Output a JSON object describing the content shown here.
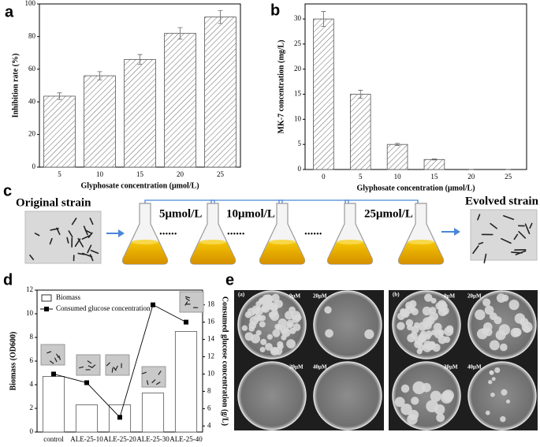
{
  "panel_labels": [
    "a",
    "b",
    "c",
    "d",
    "e"
  ],
  "chart_data": [
    {
      "type": "bar",
      "ylabel": "Inhibition rate (%)",
      "xlabel": "Glyphosate concentration (μmol/L)",
      "categories": [
        "5",
        "10",
        "15",
        "20",
        "25"
      ],
      "values": [
        43.5,
        56,
        66,
        82,
        92
      ],
      "errors": [
        2,
        2.5,
        3,
        3.5,
        4
      ],
      "ylim": [
        0,
        100
      ],
      "yticks": [
        0,
        20,
        40,
        60,
        80,
        100
      ],
      "hatch": true,
      "color": "#ffffff"
    },
    {
      "type": "bar",
      "ylabel": "MK-7 concentration (mg/L)",
      "xlabel": "Glyphosate concentration (μmol/L)",
      "categories": [
        "0",
        "5",
        "10",
        "15",
        "20",
        "25"
      ],
      "values": [
        30,
        15,
        5,
        2,
        0,
        0
      ],
      "errors": [
        1.5,
        0.8,
        0.2,
        0.1,
        0,
        0
      ],
      "ylim": [
        0,
        33
      ],
      "yticks": [
        0,
        5,
        10,
        15,
        20,
        25,
        30
      ],
      "hatch": true,
      "color": "#ffffff"
    },
    {
      "type": "bar-line",
      "ylabel": "Biomass (OD600)",
      "y2label": "Consumed glucose concentration (g/L)",
      "categories": [
        "control",
        "ALE-25-10",
        "ALE-25-20",
        "ALE-25-30",
        "ALE-25-40"
      ],
      "series": [
        {
          "name": "Biomass",
          "type": "bar",
          "color": "#ffffff",
          "values": [
            4.7,
            2.3,
            2.3,
            3.3,
            8.5
          ]
        },
        {
          "name": "Consumed glucose concentration",
          "type": "line",
          "axis": "y2",
          "color": "#000000",
          "values": [
            10,
            9,
            5,
            18,
            16
          ]
        }
      ],
      "ylim": [
        0,
        12
      ],
      "yticks": [
        0,
        2,
        4,
        6,
        8,
        10,
        12
      ],
      "y2lim": [
        3.3,
        19.7
      ],
      "y2ticks": [
        4,
        6,
        8,
        10,
        12,
        14,
        16,
        18
      ],
      "legend": "upper left"
    }
  ],
  "diagram": {
    "original": "Original strain",
    "evolved": "Evolved strain",
    "steps": [
      "5μmol/L",
      "10μmol/L",
      "25μmol/L"
    ],
    "ellipsis": "......"
  },
  "photos": [
    {
      "label": "(a)",
      "plates": [
        "0μM",
        "20μM",
        "30μM",
        "40μM"
      ]
    },
    {
      "label": "(b)",
      "plates": [
        "0μM",
        "20μM",
        "30μM",
        "40μM"
      ]
    }
  ]
}
